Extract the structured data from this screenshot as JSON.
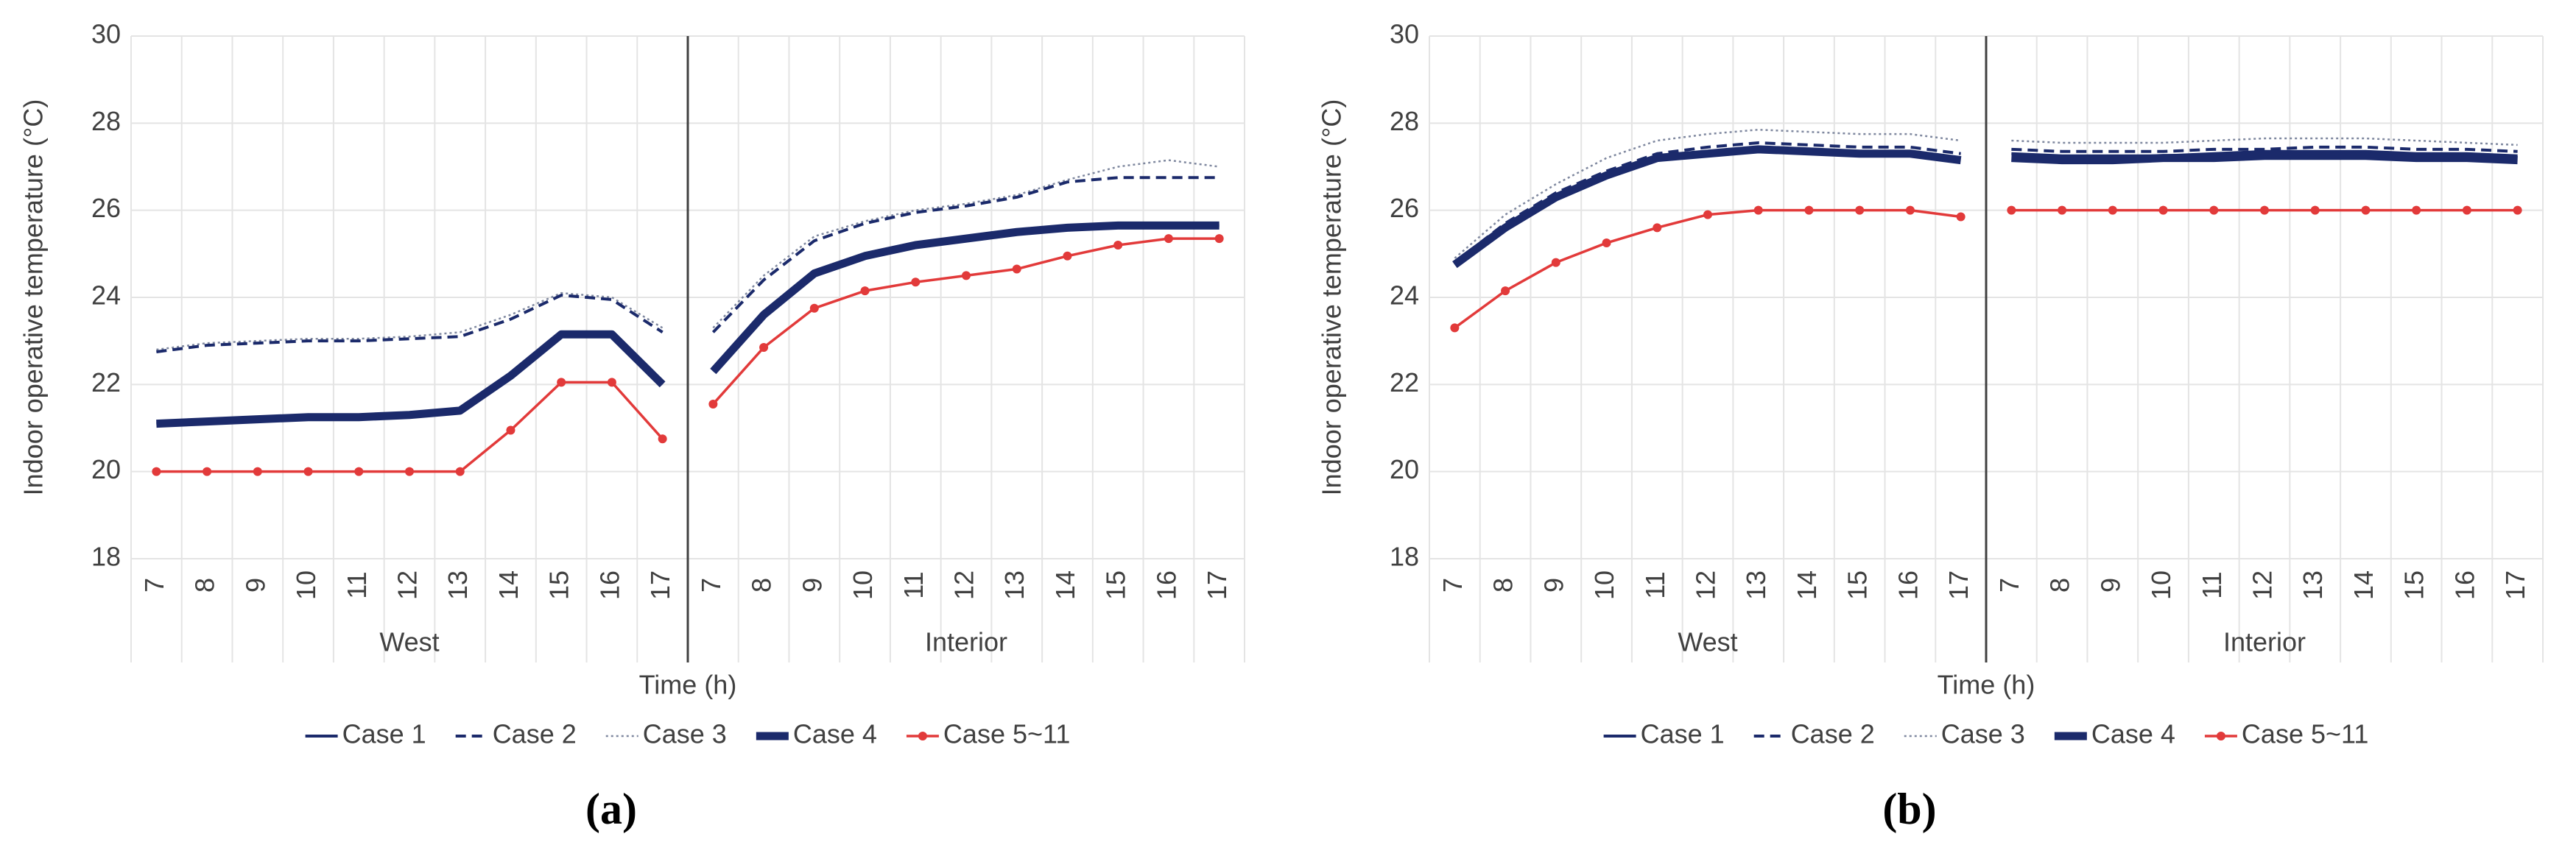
{
  "chart_data": [
    {
      "type": "line",
      "panel_label": "(a)",
      "ylabel": "Indoor operative temperature (°C)",
      "xlabel": "Time (h)",
      "categories": [
        "7",
        "8",
        "9",
        "10",
        "11",
        "12",
        "13",
        "14",
        "15",
        "16",
        "17",
        "7",
        "8",
        "9",
        "10",
        "11",
        "12",
        "13",
        "14",
        "15",
        "16",
        "17"
      ],
      "group_labels": [
        "West",
        "Interior"
      ],
      "ylim": [
        18,
        30
      ],
      "yticks": [
        18,
        20,
        22,
        24,
        26,
        28,
        30
      ],
      "grid": true,
      "legend": "bottom",
      "series": [
        {
          "name": "Case 1",
          "color": "#1b2a6b",
          "style": "solid",
          "values": [
            21.1,
            21.15,
            21.2,
            21.25,
            21.25,
            21.3,
            21.4,
            22.2,
            23.15,
            23.15,
            22.0,
            22.3,
            23.6,
            24.55,
            24.95,
            25.2,
            25.35,
            25.5,
            25.6,
            25.65,
            25.65,
            25.65
          ]
        },
        {
          "name": "Case 2",
          "color": "#1b2a6b",
          "style": "dashed",
          "values": [
            22.75,
            22.9,
            22.95,
            23.0,
            23.0,
            23.05,
            23.1,
            23.5,
            24.05,
            23.95,
            23.2,
            23.2,
            24.4,
            25.3,
            25.7,
            25.95,
            26.1,
            26.3,
            26.65,
            26.75,
            26.75,
            26.75
          ]
        },
        {
          "name": "Case 3",
          "color": "#7f889f",
          "style": "dotted",
          "values": [
            22.8,
            22.95,
            23.0,
            23.05,
            23.05,
            23.1,
            23.2,
            23.6,
            24.1,
            24.0,
            23.3,
            23.3,
            24.5,
            25.4,
            25.75,
            26.0,
            26.15,
            26.35,
            26.7,
            27.0,
            27.15,
            27.0
          ]
        },
        {
          "name": "Case 4",
          "color": "#1b2a6b",
          "style": "bold",
          "values": [
            21.1,
            21.15,
            21.2,
            21.25,
            21.25,
            21.3,
            21.4,
            22.2,
            23.15,
            23.15,
            22.0,
            22.3,
            23.6,
            24.55,
            24.95,
            25.2,
            25.35,
            25.5,
            25.6,
            25.65,
            25.65,
            25.65
          ]
        },
        {
          "name": "Case 5~11",
          "color": "#e23a3a",
          "style": "marker",
          "values": [
            20,
            20,
            20,
            20,
            20,
            20,
            20,
            20.95,
            22.05,
            22.05,
            20.75,
            21.55,
            22.85,
            23.75,
            24.15,
            24.35,
            24.5,
            24.65,
            24.95,
            25.2,
            25.35,
            25.35
          ]
        }
      ]
    },
    {
      "type": "line",
      "panel_label": "(b)",
      "ylabel": "Indoor operative temperature (°C)",
      "xlabel": "Time (h)",
      "categories": [
        "7",
        "8",
        "9",
        "10",
        "11",
        "12",
        "13",
        "14",
        "15",
        "16",
        "17",
        "7",
        "8",
        "9",
        "10",
        "11",
        "12",
        "13",
        "14",
        "15",
        "16",
        "17"
      ],
      "group_labels": [
        "West",
        "Interior"
      ],
      "ylim": [
        18,
        30
      ],
      "yticks": [
        18,
        20,
        22,
        24,
        26,
        28,
        30
      ],
      "grid": true,
      "legend": "bottom",
      "series": [
        {
          "name": "Case 1",
          "color": "#1b2a6b",
          "style": "solid",
          "values": [
            24.75,
            25.65,
            26.35,
            26.85,
            27.25,
            27.35,
            27.45,
            27.4,
            27.35,
            27.35,
            27.2,
            27.3,
            27.25,
            27.25,
            27.25,
            27.3,
            27.35,
            27.35,
            27.35,
            27.3,
            27.3,
            27.25
          ]
        },
        {
          "name": "Case 2",
          "color": "#1b2a6b",
          "style": "dashed",
          "values": [
            24.8,
            25.7,
            26.4,
            26.9,
            27.3,
            27.45,
            27.55,
            27.5,
            27.45,
            27.45,
            27.3,
            27.4,
            27.35,
            27.35,
            27.35,
            27.4,
            27.4,
            27.45,
            27.45,
            27.4,
            27.4,
            27.35
          ]
        },
        {
          "name": "Case 3",
          "color": "#7f889f",
          "style": "dotted",
          "values": [
            24.9,
            25.9,
            26.6,
            27.2,
            27.6,
            27.75,
            27.85,
            27.8,
            27.75,
            27.75,
            27.6,
            27.6,
            27.55,
            27.55,
            27.55,
            27.6,
            27.65,
            27.65,
            27.65,
            27.6,
            27.55,
            27.5
          ]
        },
        {
          "name": "Case 4",
          "color": "#1b2a6b",
          "style": "bold",
          "values": [
            24.75,
            25.6,
            26.3,
            26.8,
            27.2,
            27.3,
            27.4,
            27.35,
            27.3,
            27.3,
            27.15,
            27.2,
            27.15,
            27.15,
            27.2,
            27.2,
            27.25,
            27.25,
            27.25,
            27.2,
            27.2,
            27.15
          ]
        },
        {
          "name": "Case 5~11",
          "color": "#e23a3a",
          "style": "marker",
          "values": [
            23.3,
            24.15,
            24.8,
            25.25,
            25.6,
            25.9,
            26.0,
            26.0,
            26.0,
            26.0,
            25.85,
            26,
            26,
            26,
            26,
            26,
            26,
            26,
            26,
            26,
            26,
            26
          ]
        }
      ]
    }
  ]
}
